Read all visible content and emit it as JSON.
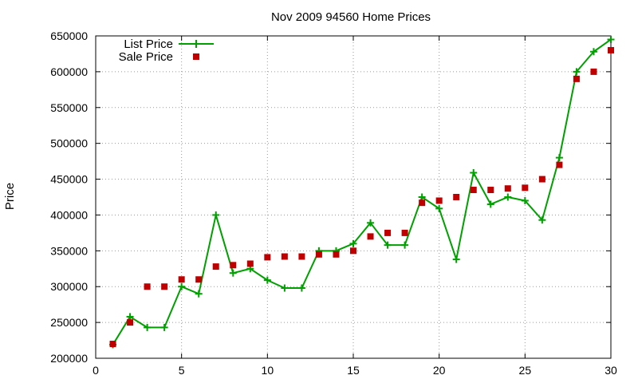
{
  "chart_data": {
    "type": "line",
    "title": "Nov 2009 94560 Home Prices",
    "xlabel": "",
    "ylabel": "Price",
    "xlim": [
      0,
      30
    ],
    "ylim": [
      200000,
      650000
    ],
    "x_ticks": [
      0,
      5,
      10,
      15,
      20,
      25,
      30
    ],
    "y_ticks": [
      200000,
      250000,
      300000,
      350000,
      400000,
      450000,
      500000,
      550000,
      600000,
      650000
    ],
    "grid": true,
    "legend_position": "top-left",
    "series": [
      {
        "name": "List Price",
        "style": "line-with-plus-markers",
        "color": "#00a000",
        "x": [
          1,
          2,
          3,
          4,
          5,
          6,
          7,
          8,
          9,
          10,
          11,
          12,
          13,
          14,
          15,
          16,
          17,
          18,
          19,
          20,
          21,
          22,
          23,
          24,
          25,
          26,
          27,
          28,
          29,
          30
        ],
        "y": [
          219000,
          258000,
          243000,
          243000,
          300000,
          290000,
          400000,
          319000,
          325000,
          309000,
          298000,
          298000,
          350000,
          350000,
          360000,
          389000,
          358000,
          358000,
          425000,
          409000,
          338000,
          459000,
          415000,
          425000,
          420000,
          393000,
          480000,
          600000,
          628000,
          645000
        ]
      },
      {
        "name": "Sale Price",
        "style": "square-markers",
        "color": "#c00000",
        "x": [
          1,
          2,
          3,
          4,
          5,
          6,
          7,
          8,
          9,
          10,
          11,
          12,
          13,
          14,
          15,
          16,
          17,
          18,
          19,
          20,
          21,
          22,
          23,
          24,
          25,
          26,
          27,
          28,
          29,
          30
        ],
        "y": [
          220000,
          250000,
          300000,
          300000,
          310000,
          310000,
          328000,
          330000,
          332000,
          341000,
          342000,
          342000,
          345000,
          345000,
          350000,
          370000,
          375000,
          375000,
          417000,
          420000,
          425000,
          435000,
          435000,
          437000,
          438000,
          450000,
          470000,
          590000,
          600000,
          630000
        ]
      }
    ]
  }
}
